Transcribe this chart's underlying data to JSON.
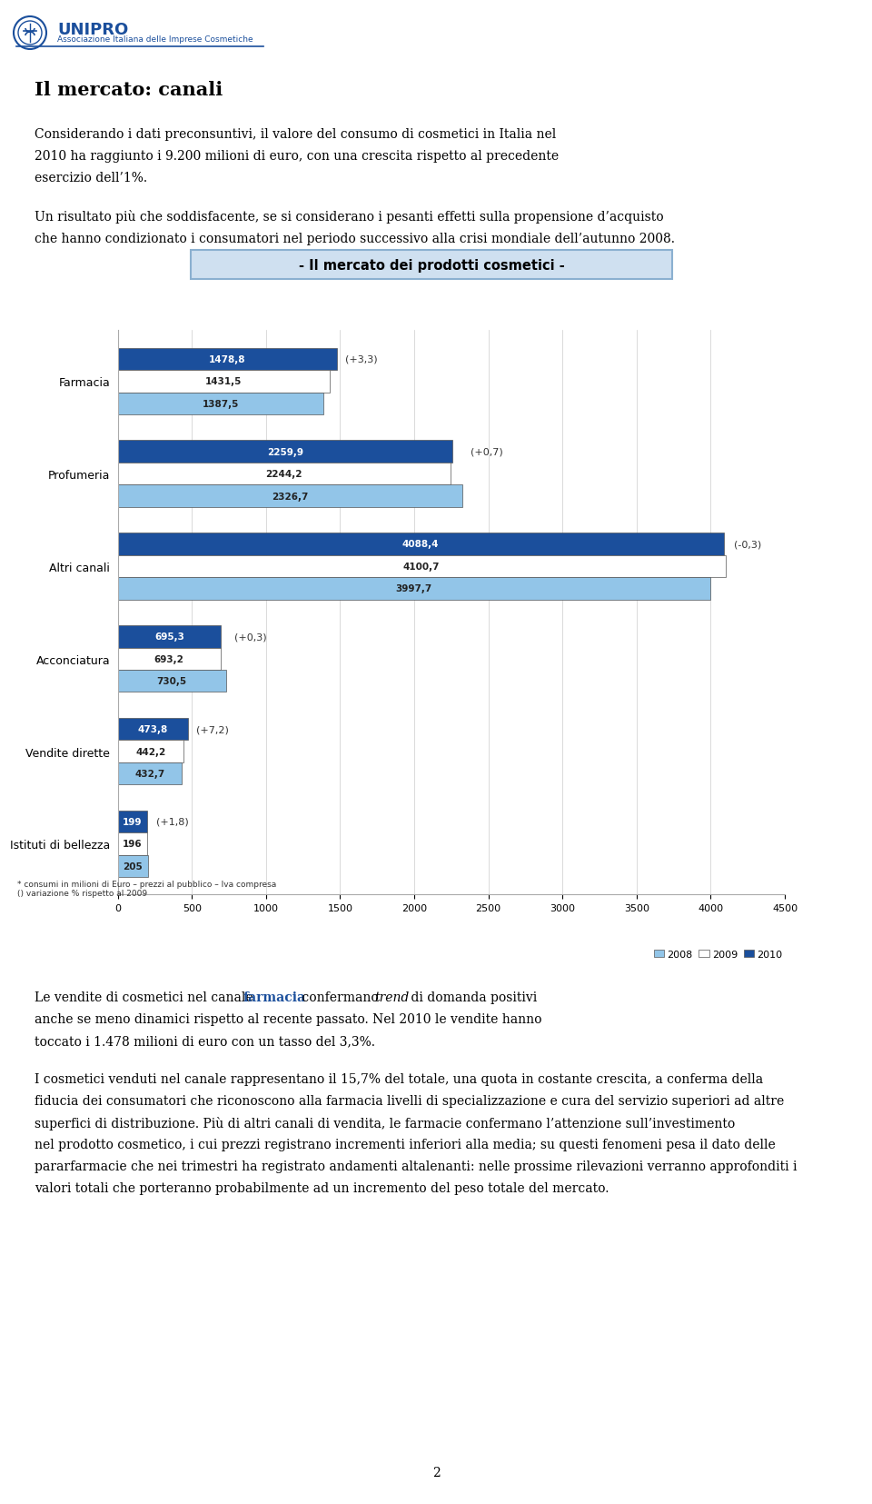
{
  "title": "- Il mercato dei prodotti cosmetici -",
  "categories": [
    "Farmacia",
    "Profumeria",
    "Altri canali",
    "Acconciatura",
    "Vendite dirette",
    "Istituti di bellezza"
  ],
  "values_2010": [
    1478.8,
    2259.9,
    4088.4,
    695.3,
    473.8,
    199
  ],
  "values_2009": [
    1431.5,
    2244.2,
    4100.7,
    693.2,
    442.2,
    196
  ],
  "values_2008": [
    1387.5,
    2326.7,
    3997.7,
    730.5,
    432.7,
    205
  ],
  "labels_2010": [
    "1478,8",
    "2259,9",
    "4088,4",
    "695,3",
    "473,8",
    "199"
  ],
  "labels_2009": [
    "1431,5",
    "2244,2",
    "4100,7",
    "693,2",
    "442,2",
    "196"
  ],
  "labels_2008": [
    "1387,5",
    "2326,7",
    "3997,7",
    "730,5",
    "432,7",
    "205"
  ],
  "annotations": [
    "(+3,3)",
    "(+0,7)",
    "(-0,3)",
    "(+0,3)",
    "(+7,2)",
    "(+1,8)"
  ],
  "color_2010": "#1B4F9C",
  "color_2009": "#FFFFFF",
  "color_2008": "#92C5E8",
  "xlim": [
    0,
    4500
  ],
  "xticks": [
    0,
    500,
    1000,
    1500,
    2000,
    2500,
    3000,
    3500,
    4000,
    4500
  ],
  "footnote_left": "* consumi in milioni di Euro – prezzi al pubblico – Iva compresa\n() variazione % rispetto al 2009",
  "legend_labels": [
    "2008",
    "2009",
    "2010"
  ],
  "page_bg": "#FFFFFF",
  "header_title": "Il mercato: canali",
  "page_number": "2"
}
